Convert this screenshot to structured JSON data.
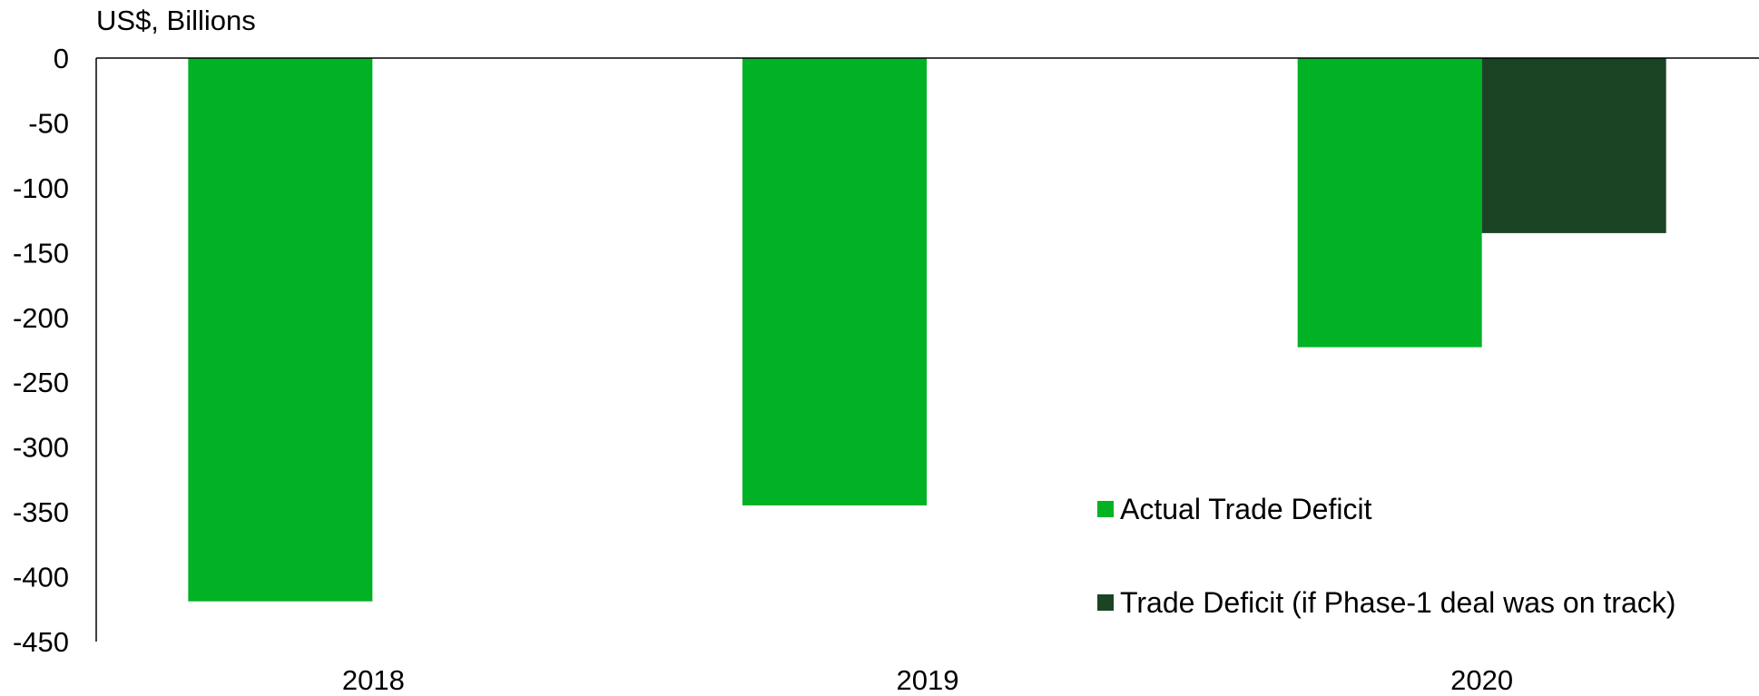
{
  "chart_data": {
    "type": "bar",
    "ylabel": "US$, Billions",
    "categories": [
      "2018",
      "2019",
      "2020"
    ],
    "ylim": [
      -450,
      0
    ],
    "yticks": [
      0,
      -50,
      -100,
      -150,
      -200,
      -250,
      -300,
      -350,
      -400,
      -450
    ],
    "grid": false,
    "legend_position": "bottom-right",
    "series": [
      {
        "name": "Actual Trade Deficit",
        "color": "#00b224",
        "values": [
          -419,
          -345,
          -223
        ]
      },
      {
        "name": "Trade Deficit (if Phase-1 deal was on track)",
        "color": "#1b4424",
        "values": [
          null,
          null,
          -135
        ]
      }
    ]
  }
}
